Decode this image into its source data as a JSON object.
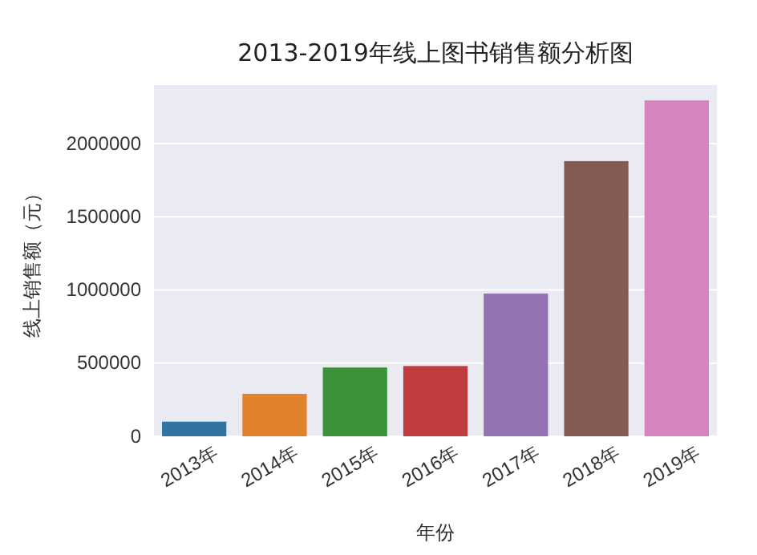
{
  "chart_data": {
    "type": "bar",
    "title": "2013-2019年线上图书销售额分析图",
    "xlabel": "年份",
    "ylabel": "线上销售额（元）",
    "categories": [
      "2013年",
      "2014年",
      "2015年",
      "2016年",
      "2017年",
      "2018年",
      "2019年"
    ],
    "values": [
      100000,
      290000,
      470000,
      480000,
      975000,
      1880000,
      2295000
    ],
    "colors": [
      "#3274a1",
      "#e1812c",
      "#3a923a",
      "#c03d3e",
      "#9372b2",
      "#845b53",
      "#d684bd"
    ],
    "ylim": [
      0,
      2400000
    ],
    "yticks": [
      0,
      500000,
      1000000,
      1500000,
      2000000
    ],
    "grid": "y"
  }
}
